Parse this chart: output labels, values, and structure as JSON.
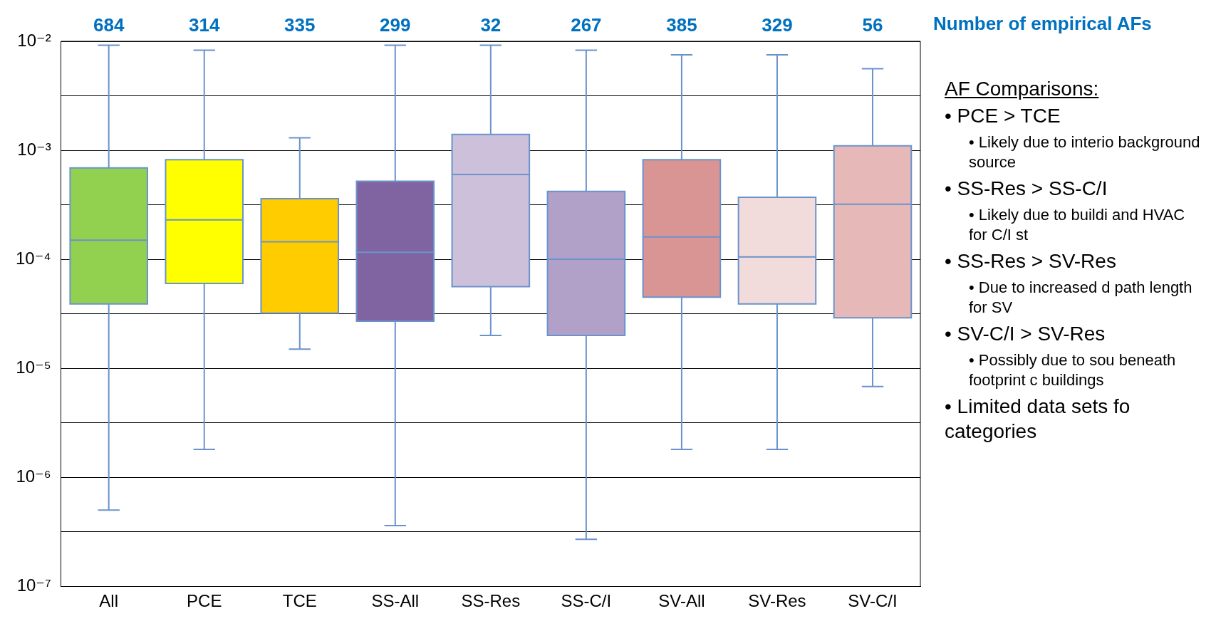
{
  "chart_data": {
    "type": "box",
    "categories": [
      "All",
      "PCE",
      "TCE",
      "SS-All",
      "SS-Res",
      "SS-C/I",
      "SV-All",
      "SV-Res",
      "SV-C/I"
    ],
    "boxes": [
      {
        "low": 5e-07,
        "q1": 3.9e-05,
        "median": 0.00015,
        "q3": 0.00069,
        "high": 0.0092
      },
      {
        "low": 1.8e-06,
        "q1": 6e-05,
        "median": 0.00023,
        "q3": 0.00082,
        "high": 0.0083
      },
      {
        "low": 1.5e-05,
        "q1": 3.2e-05,
        "median": 0.000145,
        "q3": 0.00036,
        "high": 0.0013
      },
      {
        "low": 3.6e-07,
        "q1": 2.7e-05,
        "median": 0.000116,
        "q3": 0.00052,
        "high": 0.0092
      },
      {
        "low": 2e-05,
        "q1": 5.6e-05,
        "median": 0.0006,
        "q3": 0.0014,
        "high": 0.0092
      },
      {
        "low": 2.7e-07,
        "q1": 2e-05,
        "median": 0.0001,
        "q3": 0.00042,
        "high": 0.0083
      },
      {
        "low": 1.8e-06,
        "q1": 4.5e-05,
        "median": 0.00016,
        "q3": 0.00082,
        "high": 0.0075
      },
      {
        "low": 1.8e-06,
        "q1": 3.9e-05,
        "median": 0.000105,
        "q3": 0.00037,
        "high": 0.0075
      },
      {
        "low": 6.8e-06,
        "q1": 2.9e-05,
        "median": 0.00032,
        "q3": 0.0011,
        "high": 0.0056
      }
    ],
    "colors": [
      "#92d050",
      "#ffff00",
      "#ffcc00",
      "#8064a2",
      "#ccc0da",
      "#b1a0c7",
      "#d99594",
      "#f2dcdb",
      "#e6b8b7"
    ],
    "log": "y",
    "ylim": [
      1e-07,
      0.01
    ],
    "yticks": [
      {
        "value": 1e-07,
        "label": "10⁻⁷"
      },
      {
        "value": 3.162e-07,
        "label": null
      },
      {
        "value": 1e-06,
        "label": "10⁻⁶"
      },
      {
        "value": 3.162e-06,
        "label": null
      },
      {
        "value": 1e-05,
        "label": "10⁻⁵"
      },
      {
        "value": 3.162e-05,
        "label": null
      },
      {
        "value": 0.0001,
        "label": "10⁻⁴"
      },
      {
        "value": 0.0003162,
        "label": null
      },
      {
        "value": 0.001,
        "label": "10⁻³"
      },
      {
        "value": 0.003162,
        "label": null
      },
      {
        "value": 0.01,
        "label": "10⁻²"
      }
    ],
    "grid": "y",
    "legend": false,
    "annotations": [
      "684",
      "314",
      "335",
      "299",
      "32",
      "267",
      "385",
      "329",
      "56",
      "Number of empirical AFs",
      "AF Comparisons:",
      "• PCE > TCE",
      "• Likely due to interio background source",
      "• SS-Res > SS-C/I",
      "• Likely due to buildi and HVAC for C/I st",
      "• SS-Res > SV-Res",
      "• Due to increased d path length for SV",
      "• SV-C/I > SV-Res",
      "• Possibly due to sou beneath footprint c buildings",
      "• Limited data sets fo categories"
    ]
  }
}
